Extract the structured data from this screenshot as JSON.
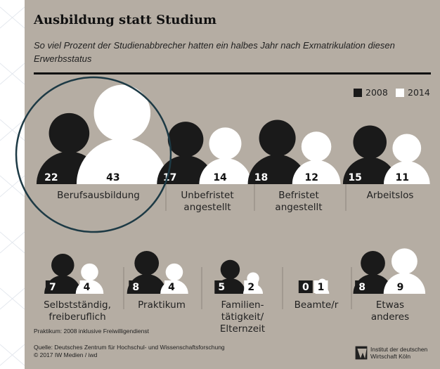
{
  "chart_data": {
    "type": "pictogram",
    "title": "Ausbildung statt Studium",
    "subtitle": "So viel Prozent der Studienabbrecher hatten ein halbes Jahr nach Exmatrikulation diesen Erwerbsstatus",
    "categories": [
      "Berufsausbildung",
      "Unbefristet\nangestellt",
      "Befristet\nangestellt",
      "Arbeitslos",
      "Selbstständig,\nfreiberuflich",
      "Praktikum",
      "Familien-\ntätigkeit/\nElternzeit",
      "Beamte/r",
      "Etwas\nanderes"
    ],
    "series": [
      {
        "name": "2008",
        "color": "#1a1a1a",
        "values": [
          22,
          17,
          18,
          15,
          7,
          8,
          5,
          0,
          8
        ]
      },
      {
        "name": "2014",
        "color": "#ffffff",
        "values": [
          43,
          14,
          12,
          11,
          4,
          4,
          2,
          1,
          9
        ]
      }
    ],
    "footnote": "Praktikum: 2008 inklusive Freiwilligendienst",
    "source": "Quelle: Deutsches Zentrum für Hochschul- und Wissenschaftsforschung",
    "copyright": "© 2017 IW Medien / iwd",
    "logo": [
      "Institut der deutschen",
      "Wirtschaft Köln"
    ]
  }
}
